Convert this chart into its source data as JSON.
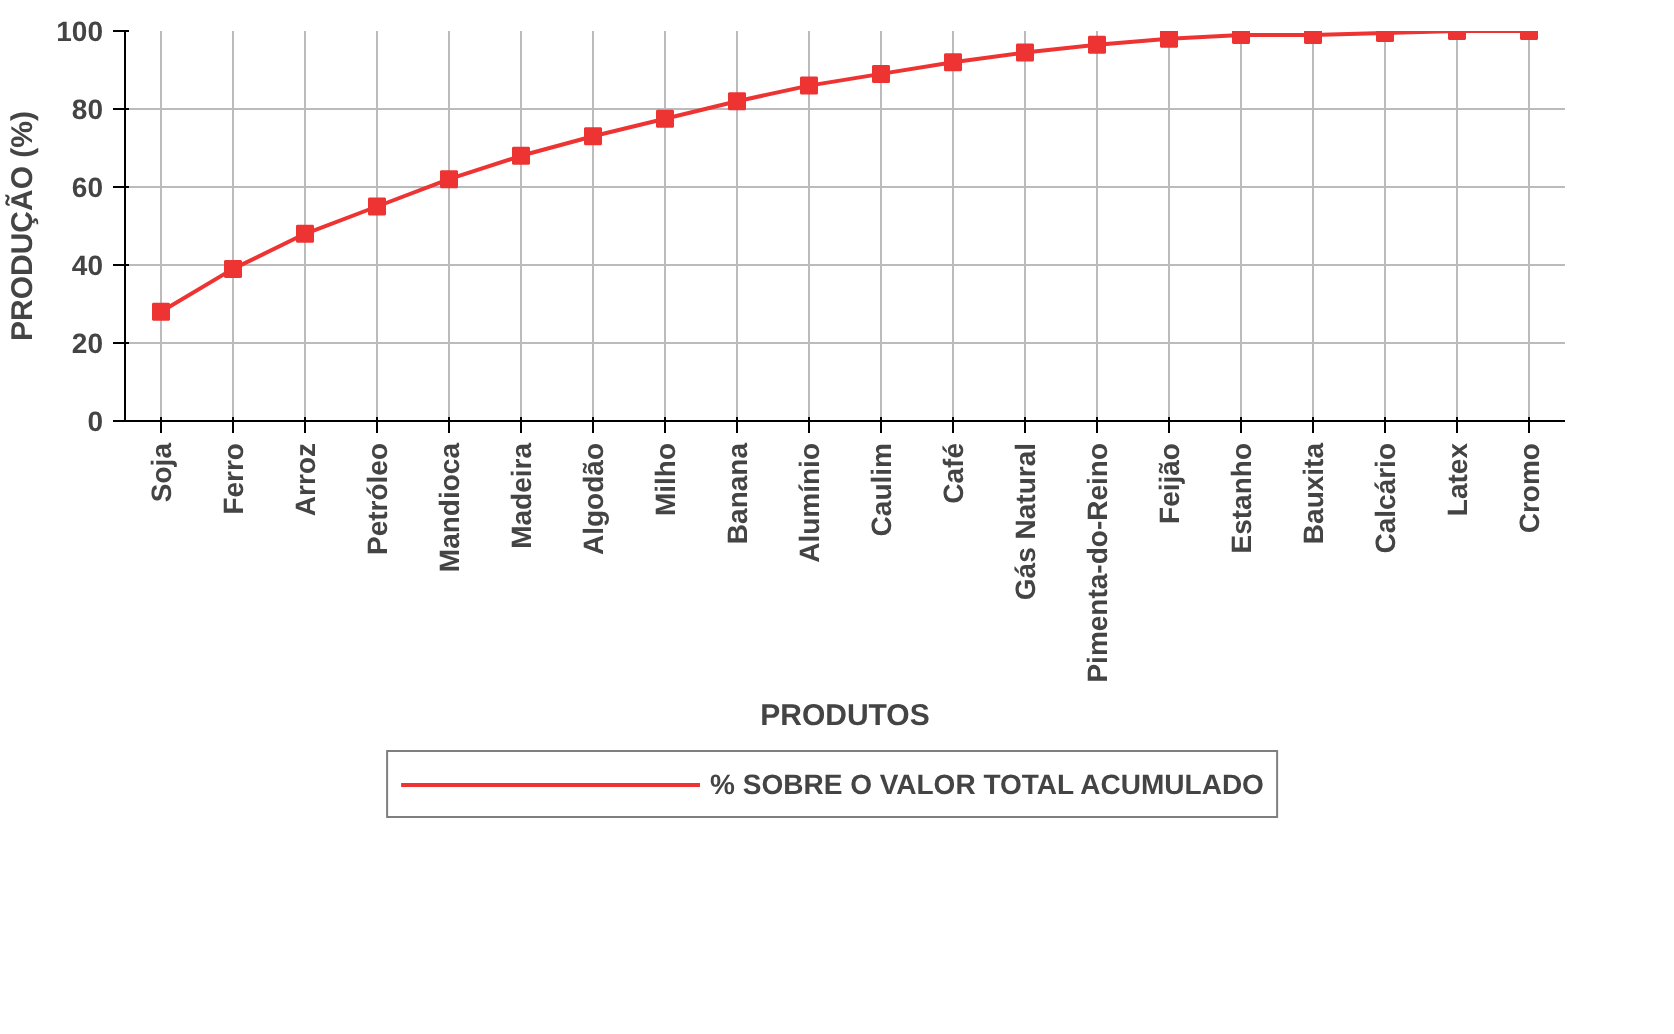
{
  "chart_data": {
    "type": "line",
    "xlabel": "PRODUTOS",
    "ylabel": "PRODUÇÃO (%)",
    "categories": [
      "Soja",
      "Ferro",
      "Arroz",
      "Petróleo",
      "Mandioca",
      "Madeira",
      "Algodão",
      "Milho",
      "Banana",
      "Alumínio",
      "Caulim",
      "Café",
      "Gás Natural",
      "Pimenta-do-Reino",
      "Feijão",
      "Estanho",
      "Bauxita",
      "Calcário",
      "Latex",
      "Cromo"
    ],
    "series": [
      {
        "name": "% SOBRE O VALOR TOTAL ACUMULADO",
        "color": "#ee3333",
        "values": [
          28,
          39,
          48,
          55,
          62,
          68,
          73,
          77.5,
          82,
          86,
          89,
          92,
          94.5,
          96.5,
          98,
          99,
          99,
          99.5,
          100,
          100
        ]
      }
    ],
    "ylim": [
      0,
      100
    ],
    "yticks": [
      0,
      20,
      40,
      60,
      80,
      100
    ],
    "grid": true,
    "legend": "bottom",
    "marker": "square",
    "line_style": "solid"
  }
}
